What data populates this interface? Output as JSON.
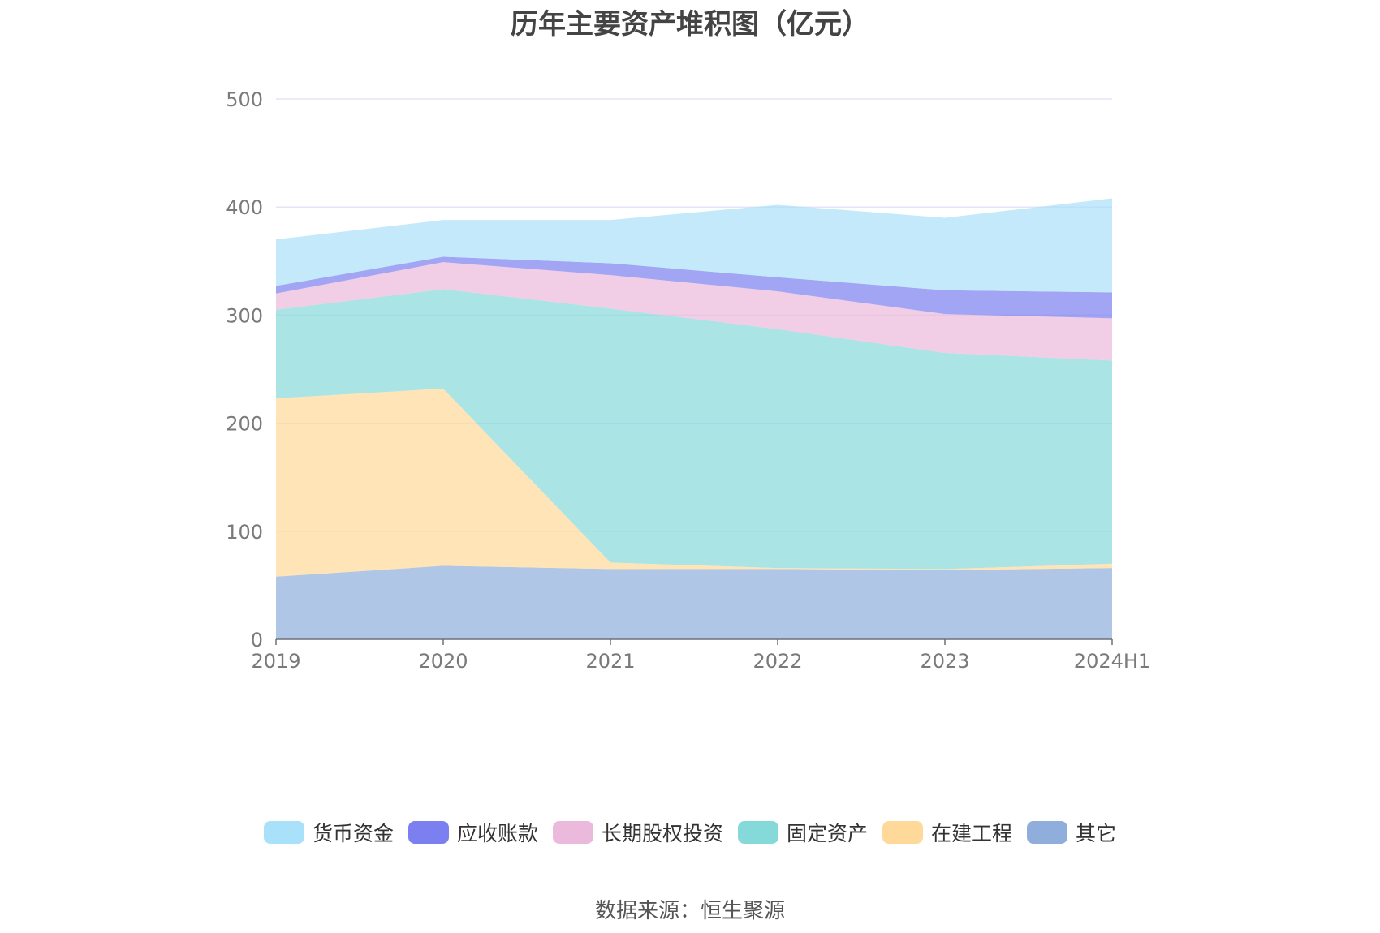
{
  "chart_data": {
    "type": "area",
    "stacked": true,
    "title": "历年主要资产堆积图（亿元）",
    "categories": [
      "2019",
      "2020",
      "2021",
      "2022",
      "2023",
      "2024H1"
    ],
    "ylim": [
      0,
      500
    ],
    "yticks": [
      "0",
      "100",
      "200",
      "300",
      "400",
      "500"
    ],
    "grid": true,
    "legend_position": "bottom",
    "series": [
      {
        "name": "其它",
        "color": "#8FAEDB",
        "values": [
          58,
          68,
          65,
          65,
          64,
          66
        ]
      },
      {
        "name": "在建工程",
        "color": "#FFD99A",
        "values": [
          165,
          164,
          6,
          1,
          1,
          4
        ]
      },
      {
        "name": "固定资产",
        "color": "#86D9D9",
        "values": [
          82,
          92,
          235,
          221,
          200,
          188
        ]
      },
      {
        "name": "长期股权投资",
        "color": "#EBB9DB",
        "values": [
          15,
          25,
          31,
          35,
          36,
          39
        ]
      },
      {
        "name": "应收账款",
        "color": "#7B7FF0",
        "values": [
          7,
          5,
          11,
          13,
          22,
          24
        ]
      },
      {
        "name": "货币资金",
        "color": "#A9E0FA",
        "values": [
          43,
          34,
          40,
          67,
          67,
          87
        ]
      }
    ],
    "legend_order": [
      "货币资金",
      "应收账款",
      "长期股权投资",
      "固定资产",
      "在建工程",
      "其它"
    ]
  },
  "legend": {
    "items": [
      {
        "label": "货币资金",
        "color": "#A9E0FA"
      },
      {
        "label": "应收账款",
        "color": "#7B7FF0"
      },
      {
        "label": "长期股权投资",
        "color": "#EBB9DB"
      },
      {
        "label": "固定资产",
        "color": "#86D9D9"
      },
      {
        "label": "在建工程",
        "color": "#FFD99A"
      },
      {
        "label": "其它",
        "color": "#8FAEDB"
      }
    ]
  },
  "source": "数据来源：恒生聚源"
}
